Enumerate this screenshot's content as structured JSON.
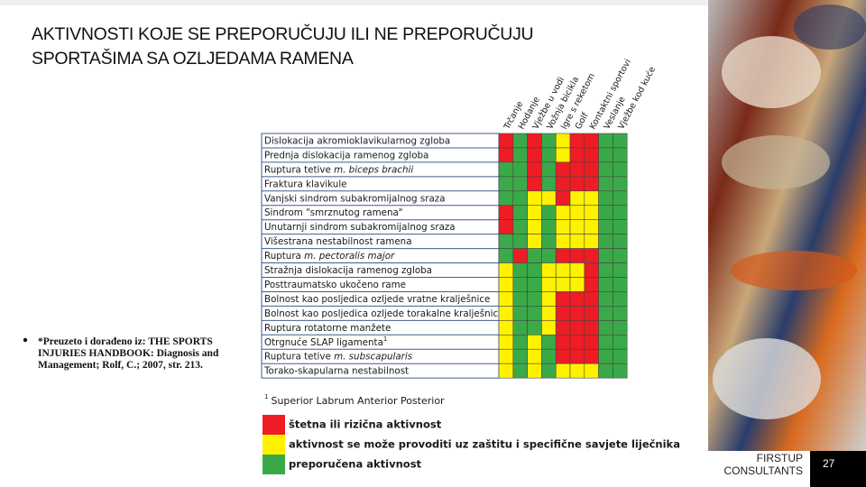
{
  "title": [
    "AKTIVNOSTI KOJE SE PREPORUČUJU ILI NE PREPORUČUJU",
    "SPORTAŠIMA SA OZLJEDAMA RAMENA"
  ],
  "note": [
    "*Preuzeto i dorađeno iz: THE SPORTS",
    "INJURIES HANDBOOK: Diagnosis and",
    "Management; Rolf, C.; 2007, str. 213."
  ],
  "table": {
    "columns": [
      "Trčanje",
      "Hodanje",
      "Vježbe u vodi",
      "Vožnja bicikla",
      "Igre s reketom",
      "Golf",
      "Kontaktni sportovi",
      "Veslanje",
      "Vježbe kod kuće"
    ],
    "rows": [
      {
        "label": "Dislokacija akromioklavikularnog zgloba",
        "cells": [
          "#ee1c24",
          "#3aaa49",
          "#ee1c24",
          "#3aaa49",
          "#fff200",
          "#ee1c24",
          "#ee1c24",
          "#3aaa49",
          "#3aaa49"
        ]
      },
      {
        "label": "Prednja dislokacija ramenog zgloba",
        "cells": [
          "#ee1c24",
          "#3aaa49",
          "#ee1c24",
          "#3aaa49",
          "#fff200",
          "#ee1c24",
          "#ee1c24",
          "#3aaa49",
          "#3aaa49"
        ]
      },
      {
        "label": "Ruptura tetive ",
        "italic": "m. biceps brachii",
        "cells": [
          "#3aaa49",
          "#3aaa49",
          "#ee1c24",
          "#3aaa49",
          "#ee1c24",
          "#ee1c24",
          "#ee1c24",
          "#3aaa49",
          "#3aaa49"
        ]
      },
      {
        "label": "Fraktura klavikule",
        "cells": [
          "#3aaa49",
          "#3aaa49",
          "#ee1c24",
          "#3aaa49",
          "#ee1c24",
          "#ee1c24",
          "#ee1c24",
          "#3aaa49",
          "#3aaa49"
        ]
      },
      {
        "label": "Vanjski sindrom subakromijalnog sraza",
        "cells": [
          "#3aaa49",
          "#3aaa49",
          "#fff200",
          "#fff200",
          "#ee1c24",
          "#fff200",
          "#fff200",
          "#3aaa49",
          "#3aaa49"
        ]
      },
      {
        "label": "Sindrom \"smrznutog ramena\"",
        "cells": [
          "#ee1c24",
          "#3aaa49",
          "#fff200",
          "#3aaa49",
          "#fff200",
          "#fff200",
          "#fff200",
          "#3aaa49",
          "#3aaa49"
        ]
      },
      {
        "label": "Unutarnji sindrom subakromijalnog sraza",
        "cells": [
          "#ee1c24",
          "#3aaa49",
          "#fff200",
          "#3aaa49",
          "#fff200",
          "#fff200",
          "#fff200",
          "#3aaa49",
          "#3aaa49"
        ]
      },
      {
        "label": "Višestrana nestabilnost ramena",
        "cells": [
          "#3aaa49",
          "#3aaa49",
          "#fff200",
          "#3aaa49",
          "#fff200",
          "#fff200",
          "#fff200",
          "#3aaa49",
          "#3aaa49"
        ]
      },
      {
        "label": "Ruptura ",
        "italic": "m. pectoralis major",
        "cells": [
          "#3aaa49",
          "#ee1c24",
          "#3aaa49",
          "#3aaa49",
          "#ee1c24",
          "#ee1c24",
          "#ee1c24",
          "#3aaa49",
          "#3aaa49"
        ]
      },
      {
        "label": "Stražnja dislokacija ramenog zgloba",
        "cells": [
          "#fff200",
          "#3aaa49",
          "#3aaa49",
          "#fff200",
          "#fff200",
          "#fff200",
          "#ee1c24",
          "#3aaa49",
          "#3aaa49"
        ]
      },
      {
        "label": "Posttraumatsko ukočeno rame",
        "cells": [
          "#fff200",
          "#3aaa49",
          "#3aaa49",
          "#fff200",
          "#fff200",
          "#fff200",
          "#ee1c24",
          "#3aaa49",
          "#3aaa49"
        ]
      },
      {
        "label": "Bolnost kao posljedica ozljede vratne kralješnice",
        "cells": [
          "#fff200",
          "#3aaa49",
          "#3aaa49",
          "#fff200",
          "#ee1c24",
          "#ee1c24",
          "#ee1c24",
          "#3aaa49",
          "#3aaa49"
        ]
      },
      {
        "label": "Bolnost kao posljedica ozljede torakalne kralješnice",
        "cells": [
          "#fff200",
          "#3aaa49",
          "#3aaa49",
          "#fff200",
          "#ee1c24",
          "#ee1c24",
          "#ee1c24",
          "#3aaa49",
          "#3aaa49"
        ]
      },
      {
        "label": "Ruptura rotatorne manžete",
        "cells": [
          "#fff200",
          "#3aaa49",
          "#3aaa49",
          "#fff200",
          "#ee1c24",
          "#ee1c24",
          "#ee1c24",
          "#3aaa49",
          "#3aaa49"
        ]
      },
      {
        "label": "Otrgnuće SLAP ligamenta",
        "sup": "1",
        "cells": [
          "#fff200",
          "#3aaa49",
          "#fff200",
          "#3aaa49",
          "#ee1c24",
          "#ee1c24",
          "#ee1c24",
          "#3aaa49",
          "#3aaa49"
        ]
      },
      {
        "label": "Ruptura tetive ",
        "italic": "m. subscapularis",
        "cells": [
          "#fff200",
          "#3aaa49",
          "#fff200",
          "#3aaa49",
          "#ee1c24",
          "#ee1c24",
          "#ee1c24",
          "#3aaa49",
          "#3aaa49"
        ]
      },
      {
        "label": "Torako-skapularna nestabilnost",
        "cells": [
          "#fff200",
          "#3aaa49",
          "#fff200",
          "#3aaa49",
          "#fff200",
          "#fff200",
          "#fff200",
          "#3aaa49",
          "#3aaa49"
        ]
      }
    ]
  },
  "footnote": {
    "mark": "1",
    "text": "Superior Labrum Anterior Posterior"
  },
  "legend": [
    {
      "color": "#ee1c24",
      "label": "štetna ili rizična aktivnost"
    },
    {
      "color": "#fff200",
      "label": "aktivnost se može provoditi uz zaštitu i specifične savjete liječnika"
    },
    {
      "color": "#3aaa49",
      "label": "preporučena aktivnost"
    }
  ],
  "footer": {
    "brand": [
      "FIRSTUP",
      "CONSULTANTS"
    ],
    "page": 27
  }
}
